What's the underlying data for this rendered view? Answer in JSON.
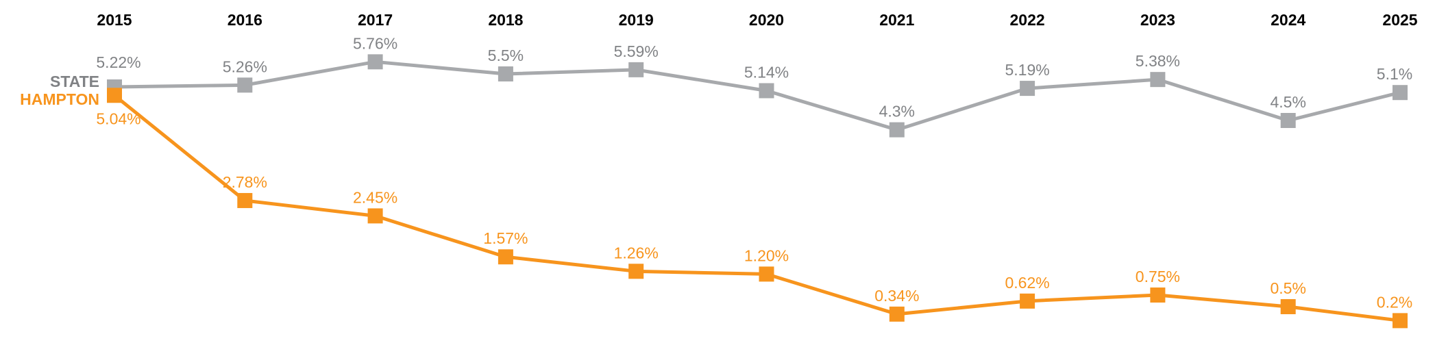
{
  "chart_data": {
    "type": "line",
    "x": [
      "2015",
      "2016",
      "2017",
      "2018",
      "2019",
      "2020",
      "2021",
      "2022",
      "2023",
      "2024",
      "2025"
    ],
    "series": [
      {
        "name": "STATE",
        "color": "#a7a9ac",
        "label_color": "#808285",
        "values": [
          5.22,
          5.26,
          5.76,
          5.5,
          5.59,
          5.14,
          4.3,
          5.19,
          5.38,
          4.5,
          5.1
        ],
        "labels": [
          "5.22%",
          "5.26%",
          "5.76%",
          "5.5%",
          "5.59%",
          "5.14%",
          "4.3%",
          "5.19%",
          "5.38%",
          "4.5%",
          "5.1%"
        ]
      },
      {
        "name": "HAMPTON",
        "color": "#f7941d",
        "label_color": "#f7941d",
        "values": [
          5.04,
          2.78,
          2.45,
          1.57,
          1.26,
          1.2,
          0.34,
          0.62,
          0.75,
          0.5,
          0.2
        ],
        "labels": [
          "5.04%",
          "2.78%",
          "2.45%",
          "1.57%",
          "1.26%",
          "1.20%",
          "0.34%",
          "0.62%",
          "0.75%",
          "0.5%",
          "0.2%"
        ]
      }
    ],
    "x_axis_position": "top",
    "grid": false,
    "legend": "left, inline labels"
  }
}
